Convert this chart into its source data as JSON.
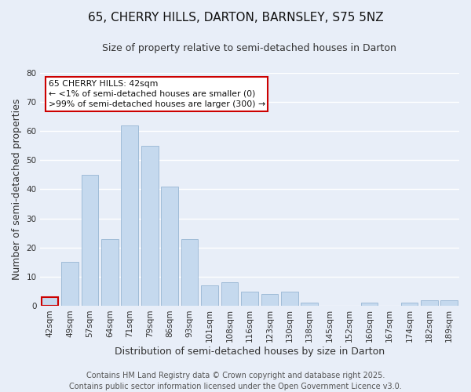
{
  "title": "65, CHERRY HILLS, DARTON, BARNSLEY, S75 5NZ",
  "subtitle": "Size of property relative to semi-detached houses in Darton",
  "xlabel": "Distribution of semi-detached houses by size in Darton",
  "ylabel": "Number of semi-detached properties",
  "categories": [
    "42sqm",
    "49sqm",
    "57sqm",
    "64sqm",
    "71sqm",
    "79sqm",
    "86sqm",
    "93sqm",
    "101sqm",
    "108sqm",
    "116sqm",
    "123sqm",
    "130sqm",
    "138sqm",
    "145sqm",
    "152sqm",
    "160sqm",
    "167sqm",
    "174sqm",
    "182sqm",
    "189sqm"
  ],
  "values": [
    3,
    15,
    45,
    23,
    62,
    55,
    41,
    23,
    7,
    8,
    5,
    4,
    5,
    1,
    0,
    0,
    1,
    0,
    1,
    2,
    2
  ],
  "bar_color": "#c5d9ee",
  "bar_edge_color": "#a0bcd8",
  "highlight_bar_index": 0,
  "highlight_bar_edge_color": "#cc0000",
  "annotation_box_text": "65 CHERRY HILLS: 42sqm\n← <1% of semi-detached houses are smaller (0)\n>99% of semi-detached houses are larger (300) →",
  "ylim": [
    0,
    80
  ],
  "yticks": [
    0,
    10,
    20,
    30,
    40,
    50,
    60,
    70,
    80
  ],
  "footer_line1": "Contains HM Land Registry data © Crown copyright and database right 2025.",
  "footer_line2": "Contains public sector information licensed under the Open Government Licence v3.0.",
  "background_color": "#e8eef8",
  "plot_bg_color": "#e8eef8",
  "grid_color": "#ffffff",
  "title_fontsize": 11,
  "subtitle_fontsize": 9,
  "axis_label_fontsize": 9,
  "tick_fontsize": 7.5,
  "footer_fontsize": 7
}
